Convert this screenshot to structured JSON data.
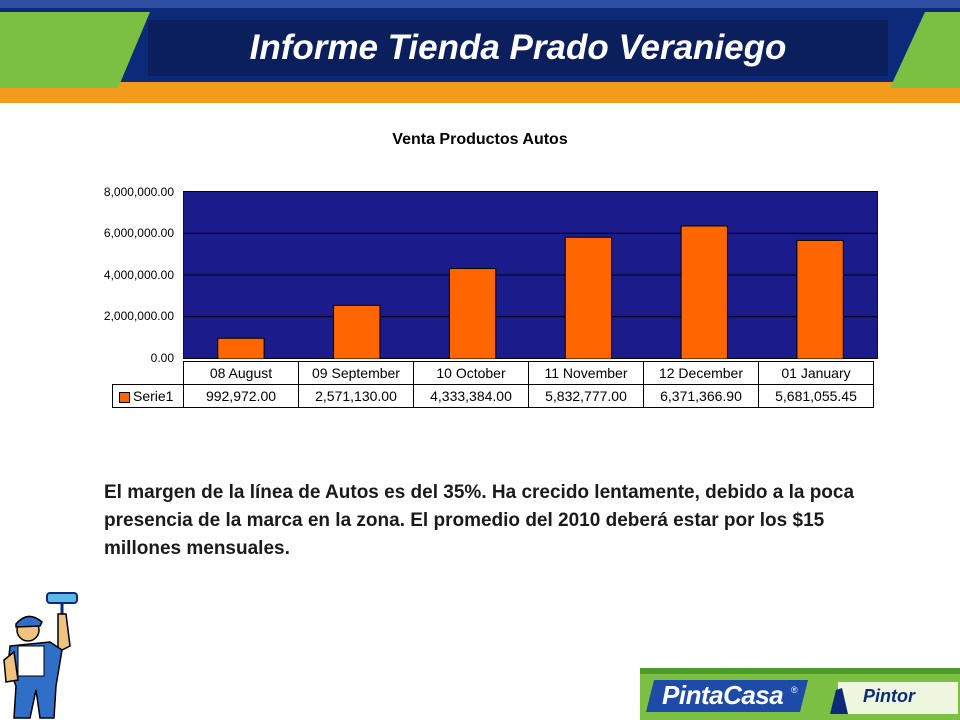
{
  "header": {
    "title": "Informe Tienda Prado Veraniego"
  },
  "chart_data": {
    "type": "bar",
    "title": "Venta Productos Autos",
    "categories": [
      "08 August",
      "09 September",
      "10 October",
      "11 November",
      "12 December",
      "01 January"
    ],
    "series": [
      {
        "name": "Serie1",
        "values": [
          992972.0,
          2571130.0,
          4333384.0,
          5832777.0,
          6371366.9,
          5681055.45
        ]
      }
    ],
    "value_labels": [
      "992,972.00",
      "2,571,130.00",
      "4,333,384.00",
      "5,832,777.00",
      "6,371,366.90",
      "5,681,055.45"
    ],
    "ylim": [
      0,
      8000000
    ],
    "yticks": [
      "8,000,000.00",
      "6,000,000.00",
      "4,000,000.00",
      "2,000,000.00",
      "0.00"
    ],
    "grid": true,
    "legend": "data-table",
    "colors": {
      "plot_bg": "#1b1b8c",
      "bar": "#ff6600"
    }
  },
  "body": {
    "paragraph": "El margen de la línea de Autos es del 35%. Ha crecido lentamente, debido a la poca presencia de la marca en la zona. El promedio del 2010 deberá estar por los $15 millones mensuales."
  },
  "footer": {
    "brand": "PintaCasa",
    "reg": "®",
    "sub_brand": "Pintor"
  },
  "colors": {
    "header_blue": "#0d2a7a",
    "header_orange": "#f29b1d",
    "accent_green": "#7bc043"
  },
  "icons": {
    "painter": "painter-mascot-icon"
  }
}
